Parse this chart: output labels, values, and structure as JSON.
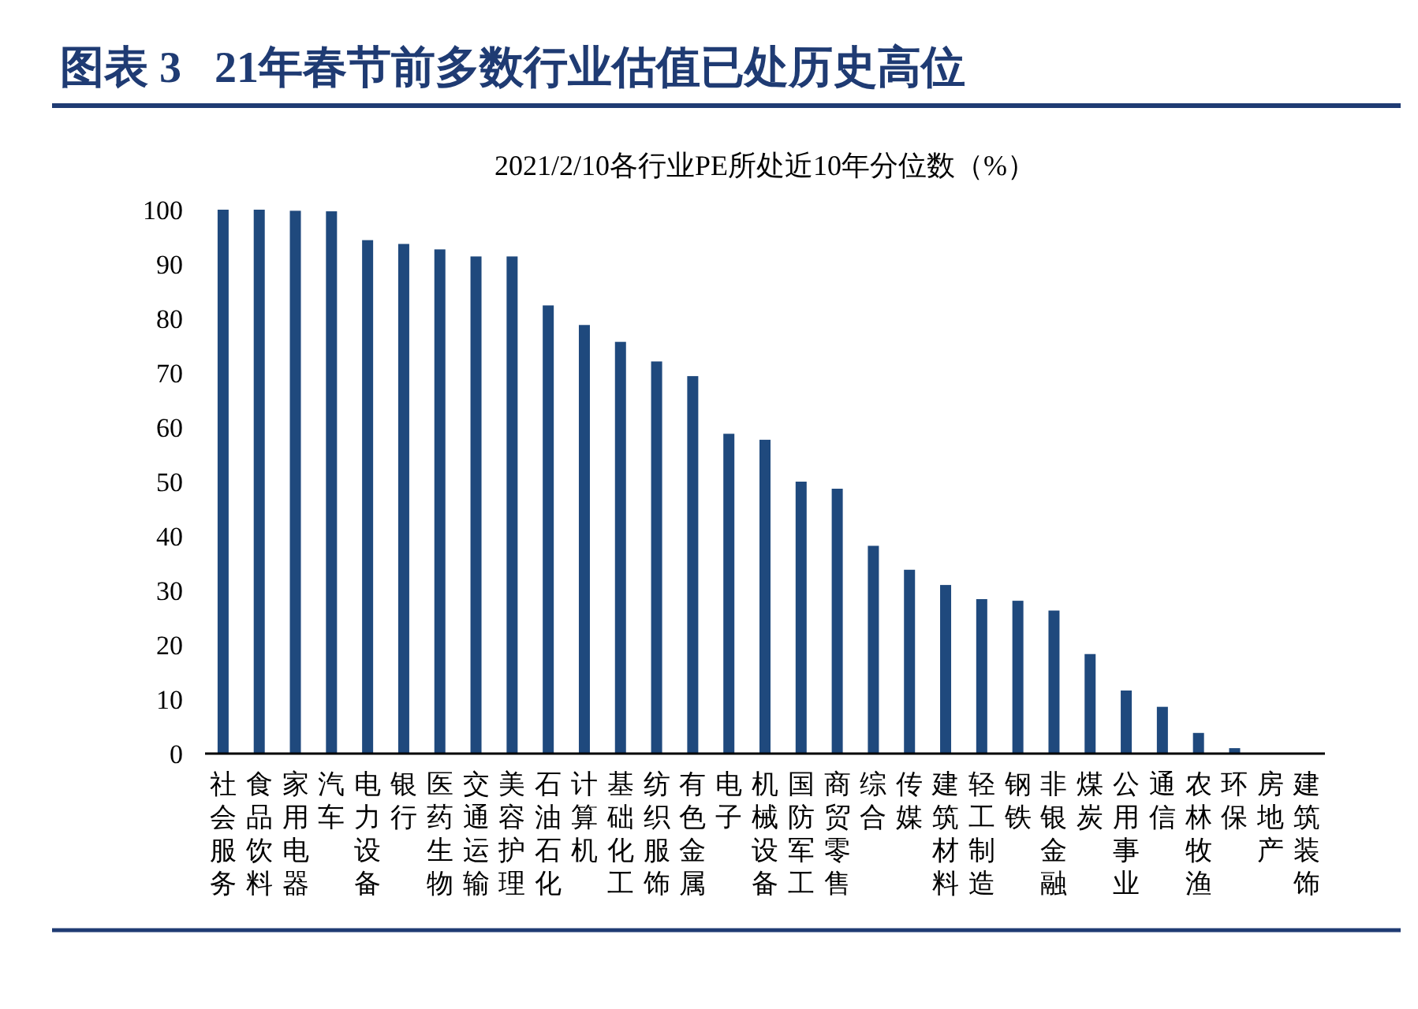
{
  "chart_data": {
    "type": "bar",
    "title": "图表 3   21年春节前多数行业估值已处历史高位",
    "subtitle": "2021/2/10各行业PE所处近10年分位数（%）",
    "categories": [
      "社会服务",
      "食品饮料",
      "家用电器",
      "汽车",
      "电力设备",
      "银行",
      "医药生物",
      "交通运输",
      "美容护理",
      "石油石化",
      "计算机",
      "基础化工",
      "纺织服饰",
      "有色金属",
      "电子",
      "机械设备",
      "国防军工",
      "商贸零售",
      "综合",
      "传媒",
      "建筑材料",
      "轻工制造",
      "钢铁",
      "非银金融",
      "煤炭",
      "公用事业",
      "通信",
      "农林牧渔",
      "环保",
      "房地产",
      "建筑装饰"
    ],
    "values": [
      100,
      100,
      99.8,
      99.7,
      94.4,
      93.7,
      92.7,
      91.4,
      91.4,
      82.4,
      78.8,
      75.7,
      72.1,
      69.4,
      58.8,
      57.7,
      50.0,
      48.7,
      38.2,
      33.8,
      31.0,
      28.4,
      28.1,
      26.3,
      18.3,
      11.6,
      8.6,
      3.8,
      1.0,
      0.1,
      0.1
    ],
    "color": "#1f497d",
    "ylim": [
      0,
      100
    ],
    "yticks": [
      0,
      10,
      20,
      30,
      40,
      50,
      60,
      70,
      80,
      90,
      100
    ],
    "grid": false
  }
}
